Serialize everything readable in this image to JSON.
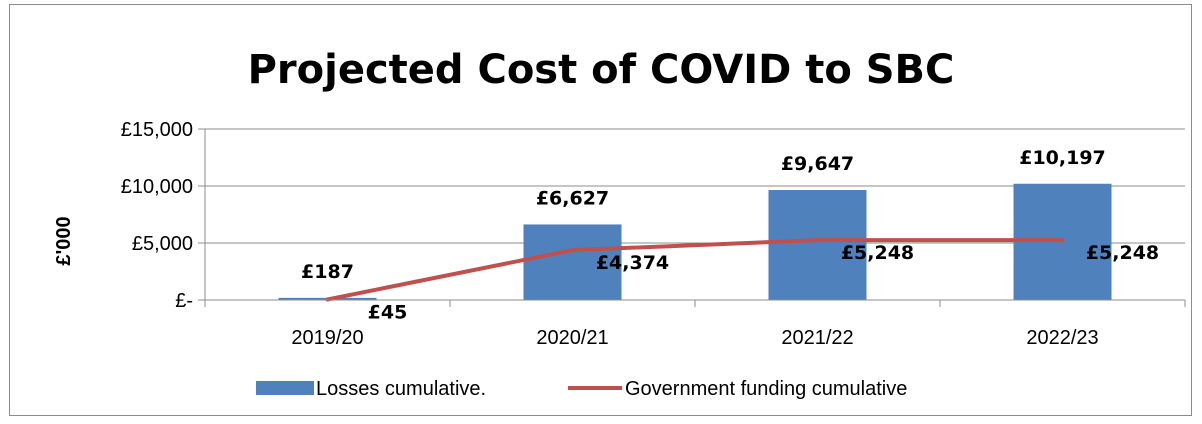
{
  "chart_data": {
    "type": "bar",
    "title": "Projected Cost of COVID to SBC",
    "xlabel": "",
    "ylabel": "£'000",
    "ylim": [
      0,
      15000
    ],
    "yticks": [
      0,
      5000,
      10000,
      15000
    ],
    "ytick_labels": [
      "£-",
      "£5,000",
      "£10,000",
      "£15,000"
    ],
    "categories": [
      "2019/20",
      "2020/21",
      "2021/22",
      "2022/23"
    ],
    "grid": true,
    "legend_position": "bottom",
    "series": [
      {
        "name": "Losses cumulative.",
        "type": "bar",
        "color": "#4f81bd",
        "values": [
          187,
          6627,
          9647,
          10197
        ],
        "labels": [
          "£187",
          "£6,627",
          "£9,647",
          "£10,197"
        ]
      },
      {
        "name": "Government funding cumulative",
        "type": "line",
        "color": "#c0504d",
        "values": [
          45,
          4374,
          5248,
          5248
        ],
        "labels": [
          "£45",
          "£4,374",
          "£5,248",
          "£5,248"
        ]
      }
    ]
  }
}
